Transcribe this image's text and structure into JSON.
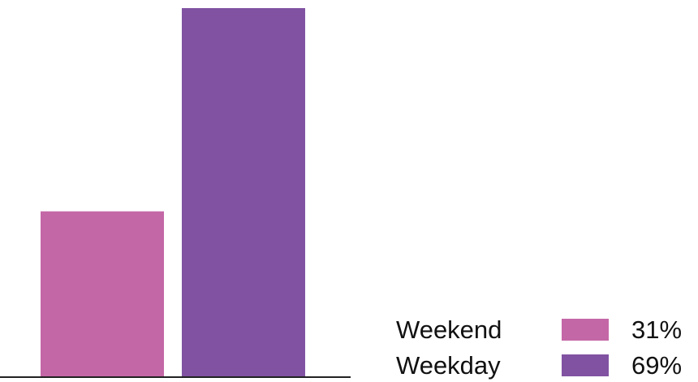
{
  "chart_data": {
    "type": "bar",
    "categories": [
      "Weekend",
      "Weekday"
    ],
    "values": [
      31,
      69
    ],
    "value_labels": [
      "31%",
      "69%"
    ],
    "colors": [
      "#C467A6",
      "#8152A2"
    ],
    "ylim": [
      0,
      69
    ],
    "grid": false,
    "legend_position": "bottom-right",
    "title": "",
    "xlabel": "",
    "ylabel": ""
  }
}
